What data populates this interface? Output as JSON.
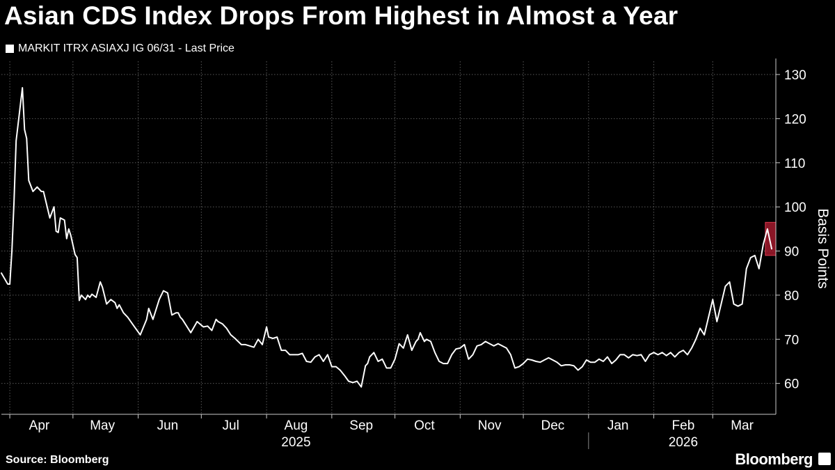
{
  "header": {
    "title": "Asian CDS Index Drops From Highest in Almost a Year"
  },
  "legend": {
    "label": "MARKIT ITRX ASIAXJ IG 06/31 - Last Price",
    "color": "#ffffff"
  },
  "footer": {
    "source": "Source: Bloomberg",
    "brand": "Bloomberg"
  },
  "chart_data": {
    "type": "line",
    "ylabel": "Basis Points",
    "ylim": [
      53,
      133
    ],
    "yticks": [
      60,
      70,
      80,
      90,
      100,
      110,
      120,
      130
    ],
    "xlim": [
      "2025-03-28",
      "2026-03-31"
    ],
    "month_ticks": [
      {
        "label": "Apr",
        "date": "2025-04-15"
      },
      {
        "label": "May",
        "date": "2025-05-15"
      },
      {
        "label": "Jun",
        "date": "2025-06-15"
      },
      {
        "label": "Jul",
        "date": "2025-07-15"
      },
      {
        "label": "Aug",
        "date": "2025-08-15"
      },
      {
        "label": "Sep",
        "date": "2025-09-15"
      },
      {
        "label": "Oct",
        "date": "2025-10-15"
      },
      {
        "label": "Nov",
        "date": "2025-11-15"
      },
      {
        "label": "Dec",
        "date": "2025-12-15"
      },
      {
        "label": "Jan",
        "date": "2026-01-15"
      },
      {
        "label": "Feb",
        "date": "2026-02-15"
      },
      {
        "label": "Mar",
        "date": "2026-03-15"
      }
    ],
    "years": [
      {
        "label": "2025",
        "date": "2025-08-15"
      },
      {
        "label": "2026",
        "date": "2026-02-15"
      }
    ],
    "highlight": {
      "x_start": "2026-03-26",
      "x_end": "2026-03-31",
      "y_low": 89,
      "y_high": 96.5,
      "color": "#b81d33"
    },
    "series": [
      {
        "color": "#ffffff",
        "x": [
          "2025-03-28",
          "2025-03-31",
          "2025-04-01",
          "2025-04-02",
          "2025-04-03",
          "2025-04-04",
          "2025-04-05",
          "2025-04-07",
          "2025-04-08",
          "2025-04-09",
          "2025-04-10",
          "2025-04-12",
          "2025-04-14",
          "2025-04-15",
          "2025-04-16",
          "2025-04-17",
          "2025-04-20",
          "2025-04-22",
          "2025-04-23",
          "2025-04-24",
          "2025-04-25",
          "2025-04-27",
          "2025-04-28",
          "2025-04-29",
          "2025-04-30",
          "2025-05-02",
          "2025-05-03",
          "2025-05-04",
          "2025-05-05",
          "2025-05-07",
          "2025-05-08",
          "2025-05-09",
          "2025-05-10",
          "2025-05-12",
          "2025-05-14",
          "2025-05-15",
          "2025-05-17",
          "2025-05-19",
          "2025-05-21",
          "2025-05-22",
          "2025-05-23",
          "2025-05-25",
          "2025-05-27",
          "2025-05-30",
          "2025-06-02",
          "2025-06-05",
          "2025-06-06",
          "2025-06-08",
          "2025-06-10",
          "2025-06-11",
          "2025-06-13",
          "2025-06-15",
          "2025-06-17",
          "2025-06-19",
          "2025-06-20",
          "2025-06-21",
          "2025-06-22",
          "2025-06-24",
          "2025-06-26",
          "2025-06-29",
          "2025-07-02",
          "2025-07-04",
          "2025-07-06",
          "2025-07-08",
          "2025-07-09",
          "2025-07-11",
          "2025-07-13",
          "2025-07-15",
          "2025-07-17",
          "2025-07-20",
          "2025-07-22",
          "2025-07-24",
          "2025-07-26",
          "2025-07-28",
          "2025-07-30",
          "2025-08-01",
          "2025-08-02",
          "2025-08-04",
          "2025-08-06",
          "2025-08-08",
          "2025-08-10",
          "2025-08-12",
          "2025-08-14",
          "2025-08-16",
          "2025-08-18",
          "2025-08-20",
          "2025-08-22",
          "2025-08-24",
          "2025-08-26",
          "2025-08-28",
          "2025-08-30",
          "2025-09-01",
          "2025-09-03",
          "2025-09-05",
          "2025-09-07",
          "2025-09-09",
          "2025-09-11",
          "2025-09-13",
          "2025-09-15",
          "2025-09-17",
          "2025-09-18",
          "2025-09-19",
          "2025-09-21",
          "2025-09-23",
          "2025-09-25",
          "2025-09-27",
          "2025-09-29",
          "2025-10-01",
          "2025-10-03",
          "2025-10-05",
          "2025-10-07",
          "2025-10-09",
          "2025-10-11",
          "2025-10-12",
          "2025-10-13",
          "2025-10-15",
          "2025-10-16",
          "2025-10-18",
          "2025-10-20",
          "2025-10-22",
          "2025-10-24",
          "2025-10-26",
          "2025-10-28",
          "2025-10-30",
          "2025-11-01",
          "2025-11-03",
          "2025-11-05",
          "2025-11-07",
          "2025-11-09",
          "2025-11-11",
          "2025-11-13",
          "2025-11-15",
          "2025-11-17",
          "2025-11-19",
          "2025-11-21",
          "2025-11-23",
          "2025-11-25",
          "2025-11-27",
          "2025-11-29",
          "2025-12-01",
          "2025-12-03",
          "2025-12-05",
          "2025-12-07",
          "2025-12-09",
          "2025-12-11",
          "2025-12-13",
          "2025-12-15",
          "2025-12-17",
          "2025-12-19",
          "2025-12-21",
          "2025-12-23",
          "2025-12-25",
          "2025-12-27",
          "2025-12-29",
          "2025-12-31",
          "2026-01-02",
          "2026-01-04",
          "2026-01-06",
          "2026-01-08",
          "2026-01-10",
          "2026-01-12",
          "2026-01-14",
          "2026-01-16",
          "2026-01-18",
          "2026-01-20",
          "2026-01-22",
          "2026-01-24",
          "2026-01-26",
          "2026-01-28",
          "2026-01-30",
          "2026-02-01",
          "2026-02-03",
          "2026-02-05",
          "2026-02-07",
          "2026-02-09",
          "2026-02-11",
          "2026-02-13",
          "2026-02-15",
          "2026-02-17",
          "2026-02-19",
          "2026-02-21",
          "2026-02-23",
          "2026-02-25",
          "2026-02-27",
          "2026-03-01",
          "2026-03-03",
          "2026-03-05",
          "2026-03-07",
          "2026-03-09",
          "2026-03-11",
          "2026-03-13",
          "2026-03-15",
          "2026-03-17",
          "2026-03-19",
          "2026-03-21",
          "2026-03-23",
          "2026-03-25",
          "2026-03-27",
          "2026-03-29"
        ],
        "y": [
          85,
          82.5,
          82.5,
          90,
          101,
          115,
          119,
          127,
          117.5,
          115.5,
          106,
          103.5,
          104.5,
          104,
          103.5,
          103.5,
          97.5,
          100,
          94.5,
          94.2,
          97.5,
          97,
          92.8,
          95,
          93.5,
          89.2,
          88.5,
          78.8,
          80,
          79,
          80,
          79.5,
          80.2,
          79.5,
          83,
          81.8,
          78,
          79,
          78.3,
          77,
          77.8,
          76,
          75,
          73,
          71,
          74.5,
          77,
          74.5,
          77.5,
          79,
          81,
          80.5,
          75.5,
          76,
          76,
          75,
          74.5,
          73,
          71.5,
          74,
          72.8,
          73,
          72,
          74.5,
          74,
          73.5,
          72.5,
          71,
          70.2,
          68.8,
          68.8,
          68.5,
          68.2,
          70,
          68.8,
          72.8,
          70.5,
          70.2,
          70.5,
          67.5,
          67.5,
          66.5,
          66.5,
          66.5,
          66.8,
          65,
          64.8,
          66,
          66.5,
          65,
          66.5,
          63.8,
          63.8,
          63,
          61.8,
          60.5,
          60.2,
          60.5,
          59.2,
          64,
          64.5,
          66,
          67,
          65,
          65.5,
          63.5,
          63.5,
          65.5,
          69,
          68,
          71,
          67.5,
          69.5,
          70,
          71.5,
          69.5,
          70,
          69.5,
          67,
          65,
          64.5,
          64.5,
          66.5,
          67.8,
          68,
          68.8,
          65.5,
          66.5,
          68.5,
          68.8,
          69.5,
          69,
          68.5,
          69,
          68.5,
          68,
          66.5,
          63.5,
          63.8,
          64.5,
          65.5,
          65.3,
          65,
          64.8,
          65.3,
          65.8,
          65.3,
          64.8,
          64,
          64.2,
          64.2,
          64,
          63,
          63.8,
          65.3,
          64.8,
          64.8,
          65.5,
          65,
          66,
          64.5,
          65.3,
          66.5,
          66.5,
          65.8,
          66.5,
          66.3,
          66.5,
          65,
          66.5,
          67,
          66.5,
          67,
          66.3,
          67,
          66,
          67,
          67.5,
          66.5,
          68,
          70,
          72.5,
          71,
          75,
          79,
          74,
          78,
          82,
          83,
          78,
          77.5,
          78,
          86,
          88.5,
          89,
          86,
          91.5,
          95,
          90.5
        ]
      }
    ]
  }
}
